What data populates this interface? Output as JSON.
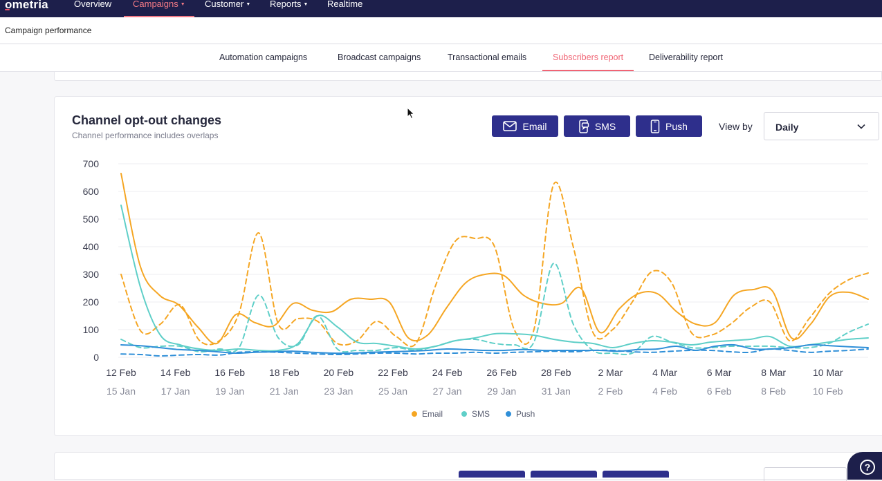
{
  "topnav": {
    "logo": "ometria",
    "items": [
      {
        "label": "Overview"
      },
      {
        "label": "Campaigns"
      },
      {
        "label": "Customer"
      },
      {
        "label": "Reports"
      },
      {
        "label": "Realtime"
      }
    ],
    "active": "Campaigns"
  },
  "subheader": {
    "title": "Campaign performance"
  },
  "tabs": [
    {
      "label": "Automation campaigns"
    },
    {
      "label": "Broadcast campaigns"
    },
    {
      "label": "Transactional emails"
    },
    {
      "label": "Subscribers report"
    },
    {
      "label": "Deliverability report"
    }
  ],
  "active_tab": "Subscribers report",
  "card": {
    "title": "Channel opt-out changes",
    "subtitle": "Channel performance includes overlaps",
    "channel_buttons": [
      {
        "label": "Email",
        "icon": "mail-icon"
      },
      {
        "label": "SMS",
        "icon": "sms-icon"
      },
      {
        "label": "Push",
        "icon": "mobile-icon"
      }
    ],
    "view_by_label": "View by",
    "view_by_value": "Daily"
  },
  "colors": {
    "email": "#f5a623",
    "sms": "#5fcfc8",
    "push": "#2f8fd8",
    "accent": "#f06474",
    "nav": "#1d1f4b",
    "button": "#2e2f8c"
  },
  "chart_data": {
    "type": "line",
    "ylim": [
      0,
      700
    ],
    "yticks": [
      0,
      100,
      200,
      300,
      400,
      500,
      600,
      700
    ],
    "x_tick_labels_current": [
      "12 Feb",
      "14 Feb",
      "16 Feb",
      "18 Feb",
      "20 Feb",
      "22 Feb",
      "24 Feb",
      "26 Feb",
      "28 Feb",
      "2 Mar",
      "4 Mar",
      "6 Mar",
      "8 Mar",
      "10 Mar"
    ],
    "x_tick_labels_previous": [
      "15 Jan",
      "17 Jan",
      "19 Jan",
      "21 Jan",
      "23 Jan",
      "25 Jan",
      "27 Jan",
      "29 Jan",
      "31 Jan",
      "2 Feb",
      "4 Feb",
      "6 Feb",
      "8 Feb",
      "10 Feb"
    ],
    "legend": [
      "Email",
      "SMS",
      "Push"
    ],
    "legend_position": "bottom-center",
    "grid": true,
    "series": [
      {
        "name": "Email",
        "dashed": false,
        "values": [
          665,
          330,
          225,
          190,
          110,
          50,
          155,
          125,
          115,
          195,
          170,
          165,
          210,
          210,
          200,
          70,
          80,
          180,
          270,
          300,
          295,
          225,
          195,
          195,
          250,
          90,
          175,
          230,
          230,
          165,
          120,
          125,
          225,
          245,
          240,
          70,
          120,
          220,
          235,
          210
        ]
      },
      {
        "name": "Email",
        "dashed": true,
        "values": [
          300,
          95,
          120,
          190,
          60,
          60,
          160,
          450,
          120,
          140,
          130,
          50,
          60,
          130,
          75,
          50,
          260,
          420,
          430,
          400,
          100,
          100,
          625,
          400,
          90,
          100,
          200,
          310,
          270,
          90,
          80,
          120,
          180,
          200,
          60,
          140,
          230,
          280,
          305
        ]
      },
      {
        "name": "SMS",
        "dashed": false,
        "values": [
          550,
          250,
          80,
          45,
          30,
          25,
          30,
          25,
          25,
          50,
          150,
          110,
          55,
          50,
          40,
          30,
          40,
          60,
          70,
          85,
          85,
          80,
          65,
          55,
          50,
          35,
          50,
          60,
          55,
          45,
          55,
          60,
          65,
          75,
          40,
          45,
          55,
          65,
          70
        ]
      },
      {
        "name": "SMS",
        "dashed": true,
        "values": [
          65,
          35,
          40,
          40,
          20,
          30,
          35,
          225,
          70,
          45,
          150,
          30,
          25,
          25,
          35,
          25,
          40,
          60,
          65,
          50,
          45,
          55,
          340,
          120,
          25,
          15,
          15,
          75,
          55,
          35,
          35,
          40,
          40,
          40,
          35,
          35,
          50,
          90,
          120
        ]
      },
      {
        "name": "Push",
        "dashed": false,
        "values": [
          45,
          42,
          35,
          28,
          25,
          20,
          15,
          18,
          20,
          22,
          18,
          15,
          15,
          18,
          20,
          22,
          25,
          30,
          28,
          25,
          25,
          28,
          25,
          25,
          25,
          25,
          22,
          28,
          30,
          40,
          25,
          40,
          45,
          30,
          30,
          35,
          45,
          42,
          38,
          35
        ]
      },
      {
        "name": "Push",
        "dashed": true,
        "values": [
          12,
          10,
          5,
          8,
          10,
          8,
          18,
          20,
          18,
          15,
          12,
          10,
          12,
          15,
          15,
          12,
          15,
          15,
          18,
          15,
          18,
          20,
          22,
          20,
          25,
          25,
          20,
          18,
          22,
          25,
          25,
          20,
          18,
          30,
          25,
          18,
          22,
          25,
          30
        ]
      }
    ]
  }
}
